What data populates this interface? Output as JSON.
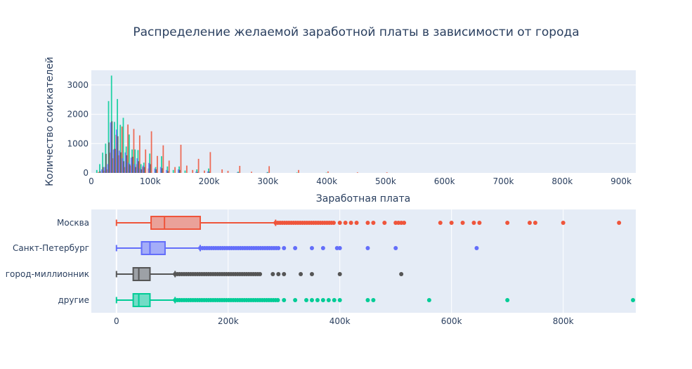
{
  "colors": {
    "Москва": "#EF553B",
    "Санкт-Петербург": "#636EFA",
    "город-миллионник": "#555555",
    "другие": "#00CC96"
  },
  "chart_data": {
    "title": "Распределение желаемой заработной платы в зависимости от города",
    "panels": [
      {
        "type": "bar",
        "subtype": "histogram",
        "xlabel": "Заработная плата",
        "ylabel": "Количество соискателей",
        "xlim": [
          0,
          925000
        ],
        "ylim": [
          0,
          3500
        ],
        "xticks": [
          "0",
          "100k",
          "200k",
          "300k",
          "400k",
          "500k",
          "600k",
          "700k",
          "800k",
          "900k"
        ],
        "yticks": [
          "0",
          "1000",
          "2000",
          "3000"
        ],
        "grid": true,
        "series": [
          {
            "name": "Москва",
            "values": [
              [
                10000,
                30
              ],
              [
                20000,
                80
              ],
              [
                25000,
                120
              ],
              [
                30000,
                690
              ],
              [
                35000,
                500
              ],
              [
                40000,
                1300
              ],
              [
                45000,
                600
              ],
              [
                50000,
                1580
              ],
              [
                55000,
                200
              ],
              [
                60000,
                1650
              ],
              [
                65000,
                250
              ],
              [
                70000,
                1500
              ],
              [
                75000,
                300
              ],
              [
                80000,
                1280
              ],
              [
                85000,
                200
              ],
              [
                90000,
                800
              ],
              [
                95000,
                150
              ],
              [
                100000,
                1420
              ],
              [
                110000,
                580
              ],
              [
                120000,
                940
              ],
              [
                130000,
                420
              ],
              [
                140000,
                200
              ],
              [
                150000,
                960
              ],
              [
                160000,
                250
              ],
              [
                170000,
                100
              ],
              [
                180000,
                480
              ],
              [
                190000,
                80
              ],
              [
                200000,
                710
              ],
              [
                220000,
                120
              ],
              [
                230000,
                70
              ],
              [
                250000,
                240
              ],
              [
                270000,
                40
              ],
              [
                300000,
                230
              ],
              [
                350000,
                100
              ],
              [
                400000,
                50
              ],
              [
                450000,
                20
              ],
              [
                500000,
                20
              ]
            ]
          },
          {
            "name": "Санкт-Петербург",
            "values": [
              [
                20000,
                120
              ],
              [
                25000,
                200
              ],
              [
                30000,
                300
              ],
              [
                35000,
                1720
              ],
              [
                40000,
                800
              ],
              [
                45000,
                1480
              ],
              [
                50000,
                760
              ],
              [
                55000,
                500
              ],
              [
                60000,
                700
              ],
              [
                65000,
                350
              ],
              [
                70000,
                520
              ],
              [
                75000,
                300
              ],
              [
                80000,
                500
              ],
              [
                85000,
                150
              ],
              [
                90000,
                250
              ],
              [
                100000,
                340
              ],
              [
                110000,
                150
              ],
              [
                120000,
                200
              ],
              [
                130000,
                100
              ],
              [
                150000,
                120
              ],
              [
                180000,
                40
              ],
              [
                200000,
                50
              ],
              [
                250000,
                15
              ],
              [
                300000,
                10
              ]
            ]
          },
          {
            "name": "город-миллионник",
            "values": [
              [
                15000,
                60
              ],
              [
                20000,
                200
              ],
              [
                25000,
                650
              ],
              [
                30000,
                1040
              ],
              [
                35000,
                1760
              ],
              [
                40000,
                820
              ],
              [
                45000,
                1250
              ],
              [
                50000,
                700
              ],
              [
                55000,
                400
              ],
              [
                60000,
                600
              ],
              [
                65000,
                300
              ],
              [
                70000,
                550
              ],
              [
                75000,
                200
              ],
              [
                80000,
                400
              ],
              [
                85000,
                120
              ],
              [
                90000,
                200
              ],
              [
                100000,
                300
              ],
              [
                110000,
                120
              ],
              [
                120000,
                160
              ],
              [
                130000,
                60
              ],
              [
                150000,
                100
              ],
              [
                180000,
                30
              ],
              [
                200000,
                40
              ],
              [
                250000,
                15
              ],
              [
                300000,
                10
              ]
            ]
          },
          {
            "name": "другие",
            "values": [
              [
                10000,
                100
              ],
              [
                15000,
                300
              ],
              [
                20000,
                690
              ],
              [
                25000,
                1000
              ],
              [
                30000,
                2450
              ],
              [
                35000,
                3320
              ],
              [
                40000,
                1740
              ],
              [
                45000,
                2520
              ],
              [
                50000,
                1640
              ],
              [
                55000,
                1880
              ],
              [
                60000,
                900
              ],
              [
                65000,
                1310
              ],
              [
                70000,
                800
              ],
              [
                75000,
                800
              ],
              [
                80000,
                780
              ],
              [
                85000,
                300
              ],
              [
                90000,
                350
              ],
              [
                100000,
                660
              ],
              [
                110000,
                200
              ],
              [
                120000,
                570
              ],
              [
                130000,
                220
              ],
              [
                140000,
                100
              ],
              [
                150000,
                220
              ],
              [
                160000,
                80
              ],
              [
                180000,
                120
              ],
              [
                200000,
                150
              ],
              [
                250000,
                40
              ],
              [
                300000,
                30
              ],
              [
                350000,
                15
              ],
              [
                400000,
                10
              ]
            ]
          }
        ]
      },
      {
        "type": "box",
        "orientation": "horizontal",
        "xlim": [
          -45000,
          930000
        ],
        "xticks": [
          "0",
          "200k",
          "400k",
          "600k",
          "800k"
        ],
        "categories": [
          "Москва",
          "Санкт-Петербург",
          "город-миллионник",
          "другие"
        ],
        "grid": true,
        "series": [
          {
            "name": "Москва",
            "min": 0,
            "q1": 62000,
            "median": 86000,
            "q3": 150000,
            "upper_fence": 285000,
            "outliers_dense": [
              285000,
              390000
            ],
            "outliers": [
              400000,
              410000,
              420000,
              430000,
              450000,
              460000,
              480000,
              500000,
              505000,
              510000,
              515000,
              580000,
              600000,
              620000,
              640000,
              650000,
              700000,
              740000,
              750000,
              800000,
              900000
            ]
          },
          {
            "name": "Санкт-Петербург",
            "min": 0,
            "q1": 45000,
            "median": 60000,
            "q3": 87000,
            "upper_fence": 150000,
            "outliers_dense": [
              150000,
              290000
            ],
            "outliers": [
              300000,
              320000,
              350000,
              370000,
              395000,
              400000,
              450000,
              500000,
              645000
            ]
          },
          {
            "name": "город-миллионник",
            "min": 0,
            "q1": 30000,
            "median": 40000,
            "q3": 60000,
            "upper_fence": 105000,
            "outliers_dense": [
              105000,
              260000
            ],
            "outliers": [
              280000,
              290000,
              300000,
              330000,
              350000,
              400000,
              510000
            ]
          },
          {
            "name": "другие",
            "min": 0,
            "q1": 30000,
            "median": 40000,
            "q3": 60000,
            "upper_fence": 105000,
            "outliers_dense": [
              105000,
              290000
            ],
            "outliers": [
              300000,
              320000,
              340000,
              350000,
              360000,
              370000,
              380000,
              390000,
              400000,
              450000,
              460000,
              560000,
              700000,
              925000
            ]
          }
        ]
      }
    ]
  }
}
